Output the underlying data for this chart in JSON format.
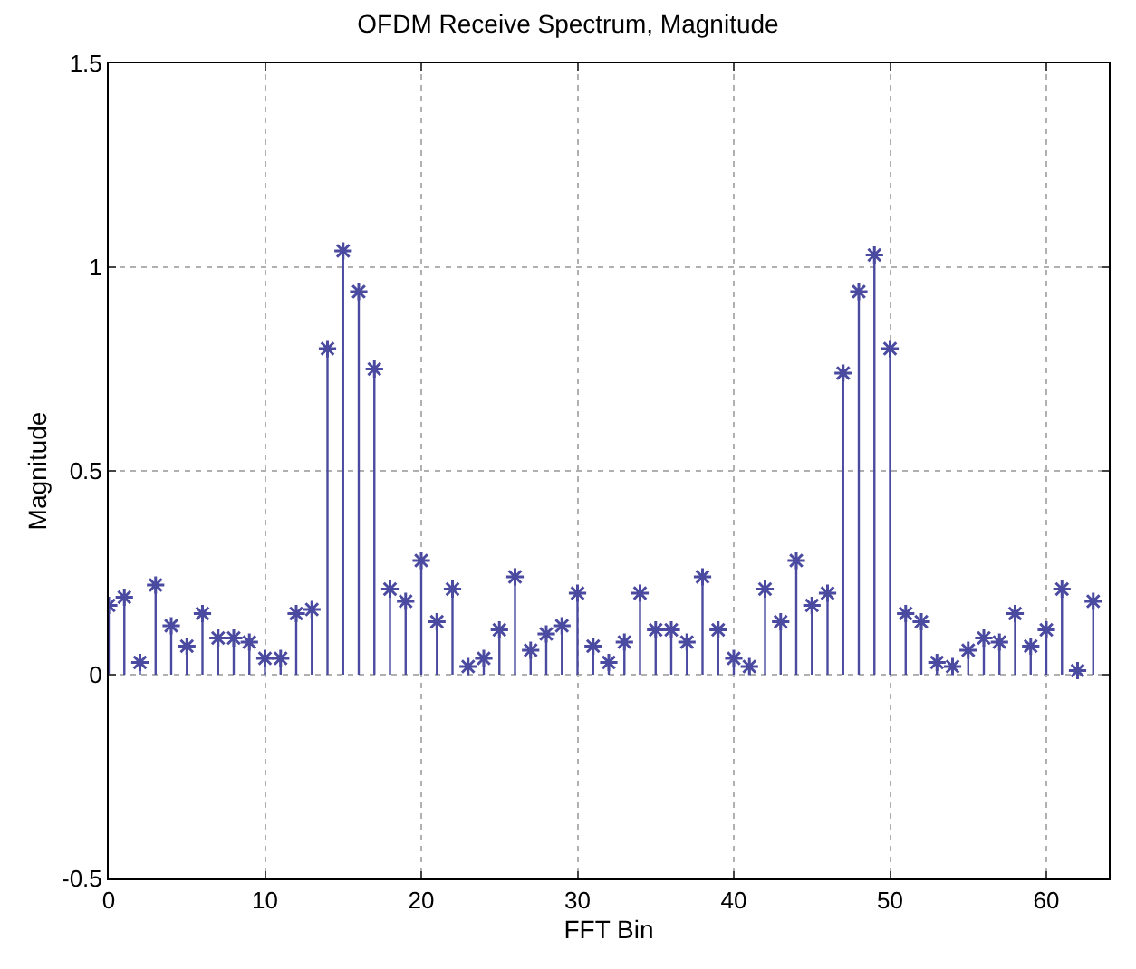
{
  "chart_data": {
    "type": "lollipop",
    "title": "OFDM Receive Spectrum, Magnitude",
    "xlabel": "FFT Bin",
    "ylabel": "Magnitude",
    "x": [
      0,
      1,
      2,
      3,
      4,
      5,
      6,
      7,
      8,
      9,
      10,
      11,
      12,
      13,
      14,
      15,
      16,
      17,
      18,
      19,
      20,
      21,
      22,
      23,
      24,
      25,
      26,
      27,
      28,
      29,
      30,
      31,
      32,
      33,
      34,
      35,
      36,
      37,
      38,
      39,
      40,
      41,
      42,
      43,
      44,
      45,
      46,
      47,
      48,
      49,
      50,
      51,
      52,
      53,
      54,
      55,
      56,
      57,
      58,
      59,
      60,
      61,
      62,
      63
    ],
    "series": [
      {
        "color": "#4a4aa0",
        "values": [
          0.17,
          0.19,
          0.03,
          0.22,
          0.12,
          0.07,
          0.15,
          0.09,
          0.09,
          0.08,
          0.04,
          0.04,
          0.15,
          0.16,
          0.8,
          1.04,
          0.94,
          0.75,
          0.21,
          0.18,
          0.28,
          0.13,
          0.21,
          0.02,
          0.04,
          0.11,
          0.24,
          0.06,
          0.1,
          0.12,
          0.2,
          0.07,
          0.03,
          0.08,
          0.2,
          0.11,
          0.11,
          0.08,
          0.24,
          0.11,
          0.04,
          0.02,
          0.21,
          0.13,
          0.28,
          0.17,
          0.2,
          0.74,
          0.94,
          1.03,
          0.8,
          0.15,
          0.13,
          0.03,
          0.02,
          0.06,
          0.09,
          0.08,
          0.15,
          0.07,
          0.11,
          0.21,
          0.01,
          0.18
        ]
      }
    ],
    "xlim": [
      0,
      64
    ],
    "xticks": [
      0,
      10,
      20,
      30,
      40,
      50,
      60
    ],
    "ylim": [
      -0.5,
      1.5
    ],
    "yticks": [
      -0.5,
      0,
      0.5,
      1,
      1.5
    ],
    "grid": true,
    "marker": "cross"
  }
}
